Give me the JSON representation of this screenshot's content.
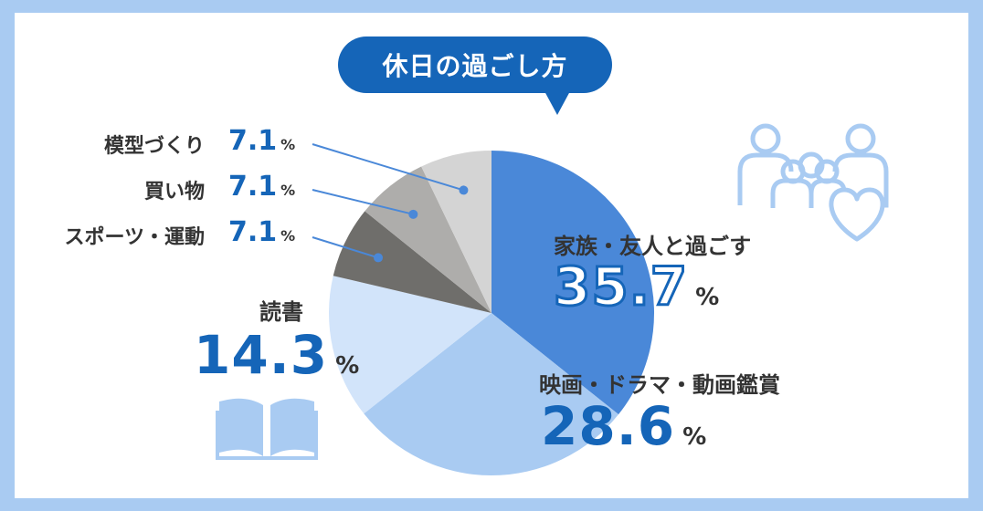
{
  "chart_data": {
    "type": "pie",
    "title": "休日の過ごし方",
    "unit": "%",
    "slices": [
      {
        "label": "家族・友人と過ごす",
        "value": 35.7,
        "color": "#4a88d8"
      },
      {
        "label": "映画・ドラマ・動画鑑賞",
        "value": 28.6,
        "color": "#a9cbf2"
      },
      {
        "label": "読書",
        "value": 14.3,
        "color": "#d2e4fa"
      },
      {
        "label": "スポーツ・運動",
        "value": 7.1,
        "color": "#6f6e6b"
      },
      {
        "label": "買い物",
        "value": 7.1,
        "color": "#aeadab"
      },
      {
        "label": "模型づくり",
        "value": 7.1,
        "color": "#d4d4d4"
      }
    ]
  },
  "labels": {
    "family": {
      "name": "家族・友人と過ごす",
      "value": "35.7"
    },
    "movie": {
      "name": "映画・ドラマ・動画鑑賞",
      "value": "28.6"
    },
    "reading": {
      "name": "読書",
      "value": "14.3"
    },
    "sports": {
      "name": "スポーツ・運動",
      "value": "7.1"
    },
    "shopping": {
      "name": "買い物",
      "value": "7.1"
    },
    "models": {
      "name": "模型づくり",
      "value": "7.1"
    },
    "unit": "%"
  },
  "icons": [
    "family-icon",
    "heart-icon",
    "book-icon"
  ],
  "colors": {
    "accent": "#1565b8",
    "frame": "#a9cbf2",
    "icon": "#a9cbf2"
  }
}
